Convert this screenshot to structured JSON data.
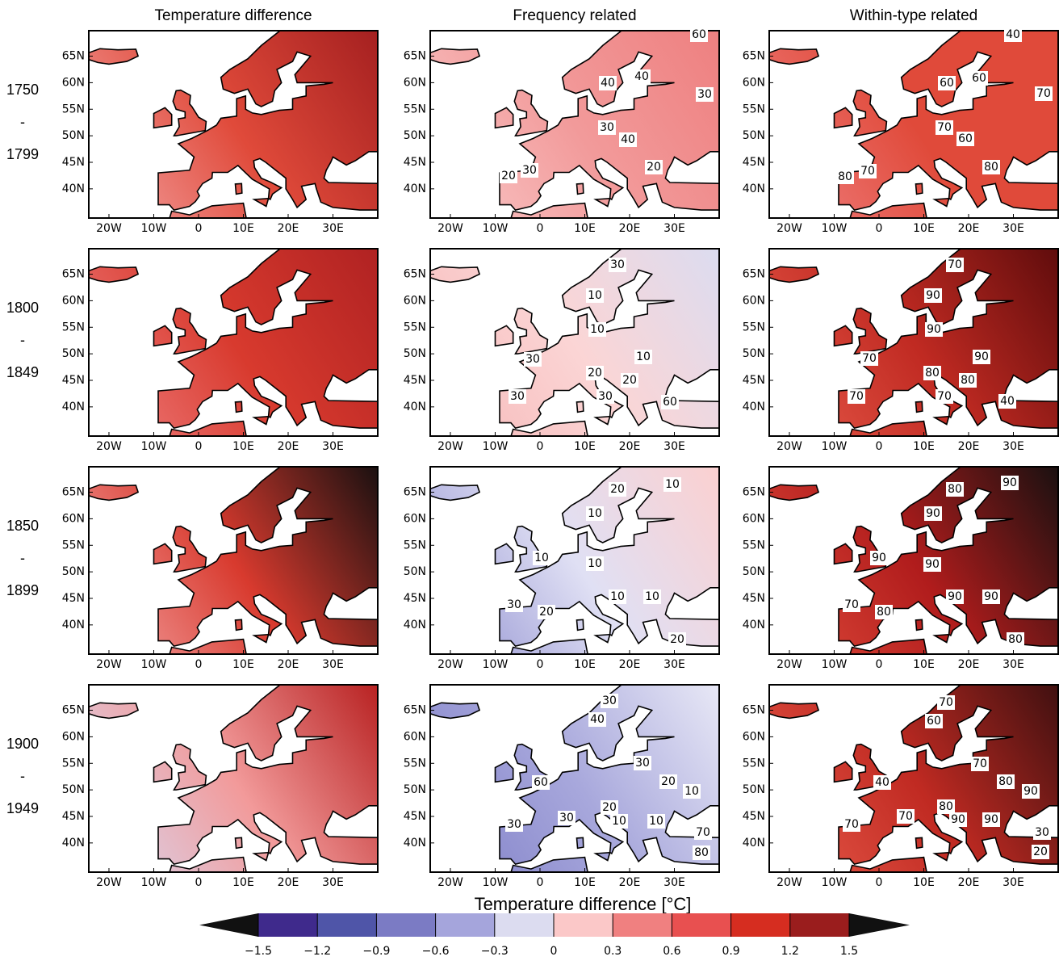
{
  "columns": [
    "Temperature difference",
    "Frequency related",
    "Within-type related"
  ],
  "rows": [
    {
      "start": "1750",
      "sep": "-",
      "end": "1799"
    },
    {
      "start": "1800",
      "sep": "-",
      "end": "1849"
    },
    {
      "start": "1850",
      "sep": "-",
      "end": "1899"
    },
    {
      "start": "1900",
      "sep": "-",
      "end": "1949"
    }
  ],
  "lat_ticks": [
    "65N",
    "60N",
    "55N",
    "50N",
    "45N",
    "40N"
  ],
  "lon_ticks": [
    "20W",
    "10W",
    "0",
    "10E",
    "20E",
    "30E"
  ],
  "panels": [
    [
      {
        "shading": [
          "#f4a5a5",
          "#e04a3a",
          "#a52020"
        ],
        "labels": []
      },
      {
        "shading": [
          "#f9c8c8",
          "#f29a9a",
          "#ee8080"
        ],
        "labels": [
          "60",
          "40",
          "40",
          "30",
          "30",
          "40",
          "20",
          "20",
          "30"
        ]
      },
      {
        "shading": [
          "#f08080",
          "#e04a3a",
          "#e04a3a"
        ],
        "labels": [
          "40",
          "60",
          "60",
          "70",
          "70",
          "60",
          "80",
          "80",
          "70"
        ]
      }
    ],
    [
      {
        "shading": [
          "#f08080",
          "#d83a2e",
          "#b02222"
        ],
        "labels": []
      },
      {
        "shading": [
          "#f6b8b8",
          "#fbd5d5",
          "#dcdcf0"
        ],
        "labels": [
          "30",
          "10",
          "10",
          "30",
          "10",
          "20",
          "20",
          "30",
          "30",
          "60"
        ]
      },
      {
        "shading": [
          "#e85a4a",
          "#c02a22",
          "#600c0c"
        ],
        "labels": [
          "70",
          "90",
          "90",
          "70",
          "90",
          "80",
          "80",
          "70",
          "70",
          "40"
        ]
      }
    ],
    [
      {
        "shading": [
          "#f4a5a5",
          "#d83a2e",
          "#1a1010"
        ],
        "labels": []
      },
      {
        "shading": [
          "#9090d0",
          "#e0e0f4",
          "#fbd0d0"
        ],
        "labels": [
          "20",
          "10",
          "10",
          "10",
          "10",
          "30",
          "20",
          "10",
          "10",
          "20"
        ]
      },
      {
        "shading": [
          "#e04a3a",
          "#b01c1c",
          "#1a1010"
        ],
        "labels": [
          "80",
          "90",
          "90",
          "90",
          "90",
          "70",
          "80",
          "90",
          "90",
          "80"
        ]
      }
    ],
    [
      {
        "shading": [
          "#d8d8f0",
          "#f29a9a",
          "#b82222"
        ],
        "labels": []
      },
      {
        "shading": [
          "#8080c8",
          "#a8a8dc",
          "#e8e8f6"
        ],
        "labels": [
          "30",
          "40",
          "30",
          "60",
          "20",
          "10",
          "20",
          "30",
          "30",
          "10",
          "10",
          "70",
          "80"
        ]
      },
      {
        "shading": [
          "#e85a4a",
          "#c02a22",
          "#401010"
        ],
        "labels": [
          "70",
          "60",
          "70",
          "40",
          "80",
          "90",
          "70",
          "80",
          "90",
          "90",
          "70",
          "30",
          "20"
        ]
      }
    ]
  ],
  "colorbar": {
    "title": "Temperature difference [°C]",
    "ticks": [
      {
        "value": -1.5,
        "label": "−1.5"
      },
      {
        "value": -1.2,
        "label": "−1.2"
      },
      {
        "value": -0.9,
        "label": "−0.9"
      },
      {
        "value": -0.6,
        "label": "−0.6"
      },
      {
        "value": -0.3,
        "label": "−0.3"
      },
      0,
      0.3,
      0.6,
      0.9,
      1.2,
      1.5
    ],
    "colors": [
      "#3f2a8c",
      "#4f55a8",
      "#7b7bc4",
      "#a5a5dc",
      "#dcdcf0",
      "#fbc8c8",
      "#f08080",
      "#e85050",
      "#d62d20",
      "#9a1d1d"
    ],
    "under_color": "#111111",
    "over_color": "#111111"
  }
}
